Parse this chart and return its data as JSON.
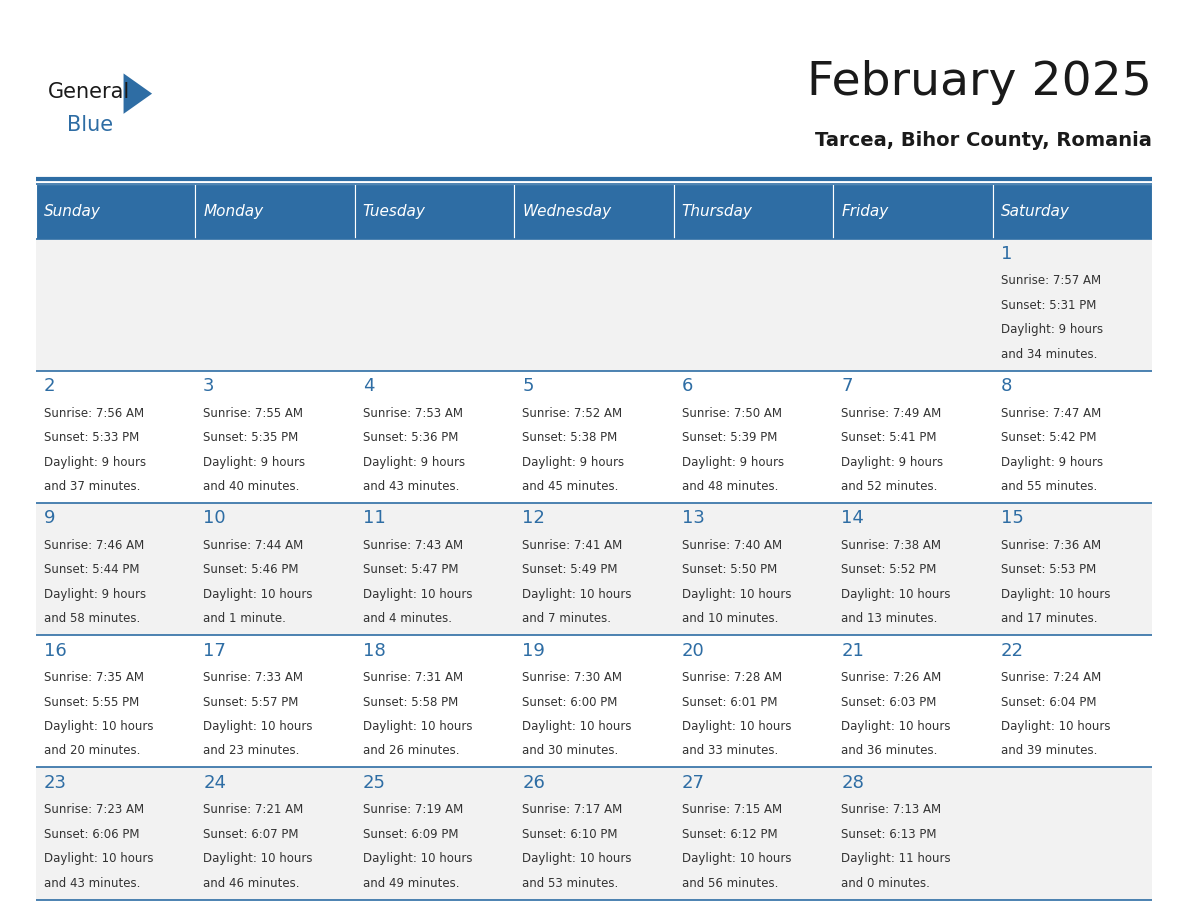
{
  "title": "February 2025",
  "subtitle": "Tarcea, Bihor County, Romania",
  "header_bg": "#2E6DA4",
  "header_text": "#FFFFFF",
  "cell_bg_even": "#F2F2F2",
  "cell_bg_odd": "#FFFFFF",
  "day_headers": [
    "Sunday",
    "Monday",
    "Tuesday",
    "Wednesday",
    "Thursday",
    "Friday",
    "Saturday"
  ],
  "title_color": "#1a1a1a",
  "subtitle_color": "#1a1a1a",
  "text_color": "#333333",
  "day_num_color": "#2E6DA4",
  "logo_general_color": "#1a1a1a",
  "logo_blue_color": "#2E6DA4",
  "calendar_data": [
    [
      null,
      null,
      null,
      null,
      null,
      null,
      {
        "day": 1,
        "sunrise": "7:57 AM",
        "sunset": "5:31 PM",
        "daylight_a": "9 hours",
        "daylight_b": "and 34 minutes."
      }
    ],
    [
      {
        "day": 2,
        "sunrise": "7:56 AM",
        "sunset": "5:33 PM",
        "daylight_a": "9 hours",
        "daylight_b": "and 37 minutes."
      },
      {
        "day": 3,
        "sunrise": "7:55 AM",
        "sunset": "5:35 PM",
        "daylight_a": "9 hours",
        "daylight_b": "and 40 minutes."
      },
      {
        "day": 4,
        "sunrise": "7:53 AM",
        "sunset": "5:36 PM",
        "daylight_a": "9 hours",
        "daylight_b": "and 43 minutes."
      },
      {
        "day": 5,
        "sunrise": "7:52 AM",
        "sunset": "5:38 PM",
        "daylight_a": "9 hours",
        "daylight_b": "and 45 minutes."
      },
      {
        "day": 6,
        "sunrise": "7:50 AM",
        "sunset": "5:39 PM",
        "daylight_a": "9 hours",
        "daylight_b": "and 48 minutes."
      },
      {
        "day": 7,
        "sunrise": "7:49 AM",
        "sunset": "5:41 PM",
        "daylight_a": "9 hours",
        "daylight_b": "and 52 minutes."
      },
      {
        "day": 8,
        "sunrise": "7:47 AM",
        "sunset": "5:42 PM",
        "daylight_a": "9 hours",
        "daylight_b": "and 55 minutes."
      }
    ],
    [
      {
        "day": 9,
        "sunrise": "7:46 AM",
        "sunset": "5:44 PM",
        "daylight_a": "9 hours",
        "daylight_b": "and 58 minutes."
      },
      {
        "day": 10,
        "sunrise": "7:44 AM",
        "sunset": "5:46 PM",
        "daylight_a": "10 hours",
        "daylight_b": "and 1 minute."
      },
      {
        "day": 11,
        "sunrise": "7:43 AM",
        "sunset": "5:47 PM",
        "daylight_a": "10 hours",
        "daylight_b": "and 4 minutes."
      },
      {
        "day": 12,
        "sunrise": "7:41 AM",
        "sunset": "5:49 PM",
        "daylight_a": "10 hours",
        "daylight_b": "and 7 minutes."
      },
      {
        "day": 13,
        "sunrise": "7:40 AM",
        "sunset": "5:50 PM",
        "daylight_a": "10 hours",
        "daylight_b": "and 10 minutes."
      },
      {
        "day": 14,
        "sunrise": "7:38 AM",
        "sunset": "5:52 PM",
        "daylight_a": "10 hours",
        "daylight_b": "and 13 minutes."
      },
      {
        "day": 15,
        "sunrise": "7:36 AM",
        "sunset": "5:53 PM",
        "daylight_a": "10 hours",
        "daylight_b": "and 17 minutes."
      }
    ],
    [
      {
        "day": 16,
        "sunrise": "7:35 AM",
        "sunset": "5:55 PM",
        "daylight_a": "10 hours",
        "daylight_b": "and 20 minutes."
      },
      {
        "day": 17,
        "sunrise": "7:33 AM",
        "sunset": "5:57 PM",
        "daylight_a": "10 hours",
        "daylight_b": "and 23 minutes."
      },
      {
        "day": 18,
        "sunrise": "7:31 AM",
        "sunset": "5:58 PM",
        "daylight_a": "10 hours",
        "daylight_b": "and 26 minutes."
      },
      {
        "day": 19,
        "sunrise": "7:30 AM",
        "sunset": "6:00 PM",
        "daylight_a": "10 hours",
        "daylight_b": "and 30 minutes."
      },
      {
        "day": 20,
        "sunrise": "7:28 AM",
        "sunset": "6:01 PM",
        "daylight_a": "10 hours",
        "daylight_b": "and 33 minutes."
      },
      {
        "day": 21,
        "sunrise": "7:26 AM",
        "sunset": "6:03 PM",
        "daylight_a": "10 hours",
        "daylight_b": "and 36 minutes."
      },
      {
        "day": 22,
        "sunrise": "7:24 AM",
        "sunset": "6:04 PM",
        "daylight_a": "10 hours",
        "daylight_b": "and 39 minutes."
      }
    ],
    [
      {
        "day": 23,
        "sunrise": "7:23 AM",
        "sunset": "6:06 PM",
        "daylight_a": "10 hours",
        "daylight_b": "and 43 minutes."
      },
      {
        "day": 24,
        "sunrise": "7:21 AM",
        "sunset": "6:07 PM",
        "daylight_a": "10 hours",
        "daylight_b": "and 46 minutes."
      },
      {
        "day": 25,
        "sunrise": "7:19 AM",
        "sunset": "6:09 PM",
        "daylight_a": "10 hours",
        "daylight_b": "and 49 minutes."
      },
      {
        "day": 26,
        "sunrise": "7:17 AM",
        "sunset": "6:10 PM",
        "daylight_a": "10 hours",
        "daylight_b": "and 53 minutes."
      },
      {
        "day": 27,
        "sunrise": "7:15 AM",
        "sunset": "6:12 PM",
        "daylight_a": "10 hours",
        "daylight_b": "and 56 minutes."
      },
      {
        "day": 28,
        "sunrise": "7:13 AM",
        "sunset": "6:13 PM",
        "daylight_a": "11 hours",
        "daylight_b": "and 0 minutes."
      },
      null
    ]
  ]
}
